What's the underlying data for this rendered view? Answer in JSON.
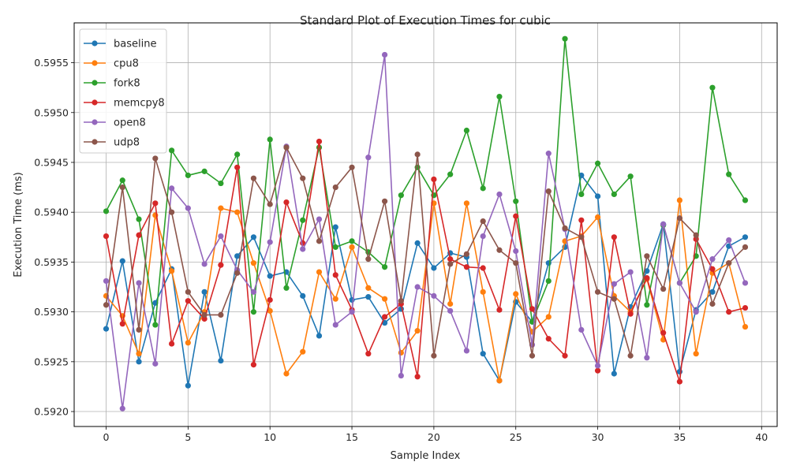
{
  "chart_data": {
    "type": "line",
    "title": "Standard Plot of Execution Times for cubic",
    "xlabel": "Sample Index",
    "ylabel": "Execution Time (ms)",
    "xlim": [
      -1.95,
      40.95
    ],
    "ylim": [
      0.59185,
      0.5959
    ],
    "xticks": [
      0,
      5,
      10,
      15,
      20,
      25,
      30,
      35,
      40
    ],
    "yticks": [
      0.592,
      0.5925,
      0.593,
      0.5935,
      0.594,
      0.5945,
      0.595,
      0.5955
    ],
    "ytick_labels": [
      "0.5920",
      "0.5925",
      "0.5930",
      "0.5935",
      "0.5940",
      "0.5945",
      "0.5950",
      "0.5955"
    ],
    "grid": true,
    "legend_position": "upper-left",
    "x": [
      0,
      1,
      2,
      3,
      4,
      5,
      6,
      7,
      8,
      9,
      10,
      11,
      12,
      13,
      14,
      15,
      16,
      17,
      18,
      19,
      20,
      21,
      22,
      23,
      24,
      25,
      26,
      27,
      28,
      29,
      30,
      31,
      32,
      33,
      34,
      35,
      36,
      37,
      38,
      39
    ],
    "series": [
      {
        "name": "baseline",
        "color": "#1f77b4",
        "values": [
          0.59283,
          0.59351,
          0.5925,
          0.59309,
          0.59343,
          0.59226,
          0.5932,
          0.59251,
          0.59356,
          0.59375,
          0.59336,
          0.5934,
          0.59316,
          0.59276,
          0.59385,
          0.59312,
          0.59315,
          0.59289,
          0.59303,
          0.59369,
          0.59344,
          0.59359,
          0.59355,
          0.59258,
          0.59231,
          0.5931,
          0.5929,
          0.59349,
          0.59365,
          0.59437,
          0.59416,
          0.59238,
          0.59305,
          0.59341,
          0.59388,
          0.5924,
          0.59302,
          0.5932,
          0.59366,
          0.59375
        ]
      },
      {
        "name": "cpu8",
        "color": "#ff7f0e",
        "values": [
          0.59316,
          0.59296,
          0.59258,
          0.59397,
          0.59341,
          0.59269,
          0.593,
          0.59404,
          0.594,
          0.59349,
          0.59301,
          0.59238,
          0.5926,
          0.5934,
          0.59313,
          0.59365,
          0.59324,
          0.59313,
          0.59259,
          0.59281,
          0.59409,
          0.59308,
          0.59409,
          0.5932,
          0.59231,
          0.59318,
          0.5928,
          0.59295,
          0.59371,
          0.59376,
          0.59395,
          0.59316,
          0.593,
          0.59333,
          0.59272,
          0.59412,
          0.59258,
          0.59339,
          0.59349,
          0.59285
        ]
      },
      {
        "name": "fork8",
        "color": "#2ca02c",
        "values": [
          0.59401,
          0.59432,
          0.59393,
          0.59287,
          0.59462,
          0.59437,
          0.59441,
          0.59429,
          0.59458,
          0.593,
          0.59473,
          0.59324,
          0.59392,
          0.59465,
          0.59365,
          0.59371,
          0.5936,
          0.59345,
          0.59417,
          0.59445,
          0.59417,
          0.59438,
          0.59482,
          0.59424,
          0.59516,
          0.59411,
          0.5929,
          0.59331,
          0.59574,
          0.59418,
          0.59449,
          0.59418,
          0.59436,
          0.59307,
          0.59387,
          0.59329,
          0.59356,
          0.59525,
          0.59438,
          0.59412
        ]
      },
      {
        "name": "memcpy8",
        "color": "#d62728",
        "values": [
          0.59376,
          0.59288,
          0.59377,
          0.59409,
          0.59268,
          0.59311,
          0.59293,
          0.59347,
          0.59445,
          0.59247,
          0.59312,
          0.5941,
          0.59369,
          0.59471,
          0.59337,
          0.59302,
          0.59258,
          0.59295,
          0.59308,
          0.59235,
          0.59433,
          0.59353,
          0.59345,
          0.59344,
          0.59302,
          0.59396,
          0.59303,
          0.59273,
          0.59256,
          0.59392,
          0.59241,
          0.59375,
          0.59298,
          0.59334,
          0.59279,
          0.5923,
          0.59373,
          0.59343,
          0.593,
          0.59304
        ]
      },
      {
        "name": "open8",
        "color": "#9467bd",
        "values": [
          0.59331,
          0.59203,
          0.59329,
          0.59248,
          0.59424,
          0.59404,
          0.59348,
          0.59376,
          0.59342,
          0.5932,
          0.5937,
          0.59466,
          0.59363,
          0.59393,
          0.59287,
          0.593,
          0.59455,
          0.59558,
          0.59236,
          0.59325,
          0.59316,
          0.59301,
          0.59261,
          0.59376,
          0.59418,
          0.59361,
          0.59267,
          0.59459,
          0.59383,
          0.59282,
          0.59246,
          0.59328,
          0.5934,
          0.59254,
          0.59388,
          0.59329,
          0.593,
          0.59353,
          0.59372,
          0.59329
        ]
      },
      {
        "name": "udp8",
        "color": "#8c564b",
        "values": [
          0.59307,
          0.59425,
          0.59282,
          0.59454,
          0.594,
          0.5932,
          0.59297,
          0.59297,
          0.59339,
          0.59434,
          0.59408,
          0.59465,
          0.59434,
          0.59371,
          0.59425,
          0.59445,
          0.59353,
          0.59411,
          0.59311,
          0.59458,
          0.59256,
          0.59348,
          0.59358,
          0.59391,
          0.59362,
          0.59349,
          0.59256,
          0.59421,
          0.59384,
          0.59375,
          0.5932,
          0.59313,
          0.59256,
          0.59356,
          0.59323,
          0.59394,
          0.59377,
          0.59308,
          0.59349,
          0.59365
        ]
      }
    ]
  }
}
